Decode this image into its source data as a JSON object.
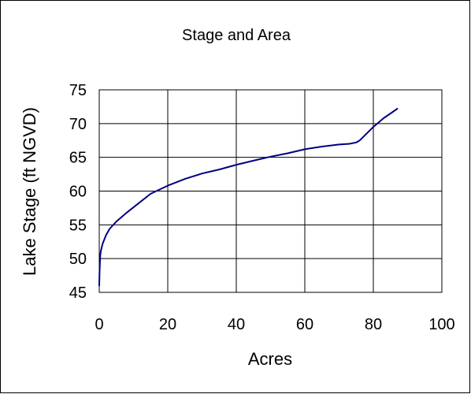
{
  "chart_data": {
    "type": "line",
    "title": "Stage and Area",
    "xlabel": "Acres",
    "ylabel": "Lake Stage (ft NGVD)",
    "xlim": [
      0,
      100
    ],
    "ylim": [
      45,
      75
    ],
    "xticks": [
      0,
      20,
      40,
      60,
      80,
      100
    ],
    "yticks": [
      45,
      50,
      55,
      60,
      65,
      70,
      75
    ],
    "grid": true,
    "legend": "none",
    "series": [
      {
        "color": "#000080",
        "x": [
          0,
          0.1,
          0.2,
          0.3,
          0.5,
          1,
          2,
          3,
          5,
          8,
          10,
          12,
          15,
          20,
          25,
          30,
          35,
          40,
          45,
          50,
          55,
          60,
          65,
          70,
          73,
          75,
          76,
          78,
          80,
          83,
          85,
          87
        ],
        "y": [
          46,
          48,
          49.5,
          50.5,
          51.2,
          52.2,
          53.5,
          54.4,
          55.5,
          56.8,
          57.6,
          58.4,
          59.6,
          60.8,
          61.8,
          62.6,
          63.2,
          63.9,
          64.5,
          65.1,
          65.6,
          66.2,
          66.6,
          66.9,
          67.0,
          67.2,
          67.5,
          68.5,
          69.5,
          70.8,
          71.5,
          72.2
        ]
      }
    ]
  }
}
